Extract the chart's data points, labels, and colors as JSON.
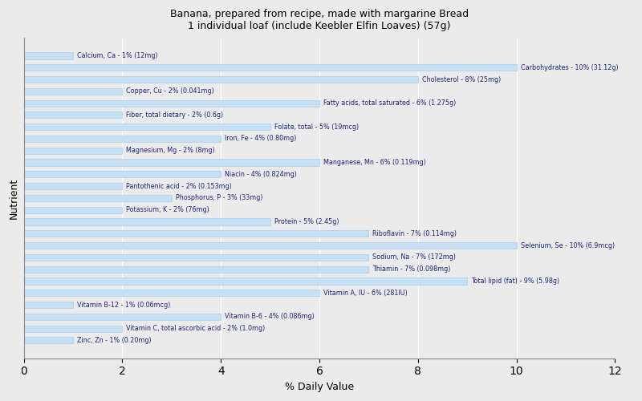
{
  "title": "Banana, prepared from recipe, made with margarine Bread\n1 individual loaf (include Keebler Elfin Loaves) (57g)",
  "xlabel": "% Daily Value",
  "ylabel": "Nutrient",
  "xlim": [
    0,
    12
  ],
  "xticks": [
    0,
    2,
    4,
    6,
    8,
    10,
    12
  ],
  "bar_color": "#c5dff5",
  "bar_edge_color": "#a0c8e8",
  "selenium_color": "#c5dff5",
  "text_color": "#1a237e",
  "background_color": "#ebebeb",
  "plot_bg_color": "#ebebeb",
  "nutrients": [
    {
      "label": "Calcium, Ca - 1% (12mg)",
      "value": 1
    },
    {
      "label": "Carbohydrates - 10% (31.12g)",
      "value": 10
    },
    {
      "label": "Cholesterol - 8% (25mg)",
      "value": 8
    },
    {
      "label": "Copper, Cu - 2% (0.041mg)",
      "value": 2
    },
    {
      "label": "Fatty acids, total saturated - 6% (1.275g)",
      "value": 6
    },
    {
      "label": "Fiber, total dietary - 2% (0.6g)",
      "value": 2
    },
    {
      "label": "Folate, total - 5% (19mcg)",
      "value": 5
    },
    {
      "label": "Iron, Fe - 4% (0.80mg)",
      "value": 4
    },
    {
      "label": "Magnesium, Mg - 2% (8mg)",
      "value": 2
    },
    {
      "label": "Manganese, Mn - 6% (0.119mg)",
      "value": 6
    },
    {
      "label": "Niacin - 4% (0.824mg)",
      "value": 4
    },
    {
      "label": "Pantothenic acid - 2% (0.153mg)",
      "value": 2
    },
    {
      "label": "Phosphorus, P - 3% (33mg)",
      "value": 3
    },
    {
      "label": "Potassium, K - 2% (76mg)",
      "value": 2
    },
    {
      "label": "Protein - 5% (2.45g)",
      "value": 5
    },
    {
      "label": "Riboflavin - 7% (0.114mg)",
      "value": 7
    },
    {
      "label": "Selenium, Se - 10% (6.9mcg)",
      "value": 10
    },
    {
      "label": "Sodium, Na - 7% (172mg)",
      "value": 7
    },
    {
      "label": "Thiamin - 7% (0.098mg)",
      "value": 7
    },
    {
      "label": "Total lipid (fat) - 9% (5.98g)",
      "value": 9
    },
    {
      "label": "Vitamin A, IU - 6% (281IU)",
      "value": 6
    },
    {
      "label": "Vitamin B-12 - 1% (0.06mcg)",
      "value": 1
    },
    {
      "label": "Vitamin B-6 - 4% (0.086mg)",
      "value": 4
    },
    {
      "label": "Vitamin C, total ascorbic acid - 2% (1.0mg)",
      "value": 2
    },
    {
      "label": "Zinc, Zn - 1% (0.20mg)",
      "value": 1
    }
  ]
}
